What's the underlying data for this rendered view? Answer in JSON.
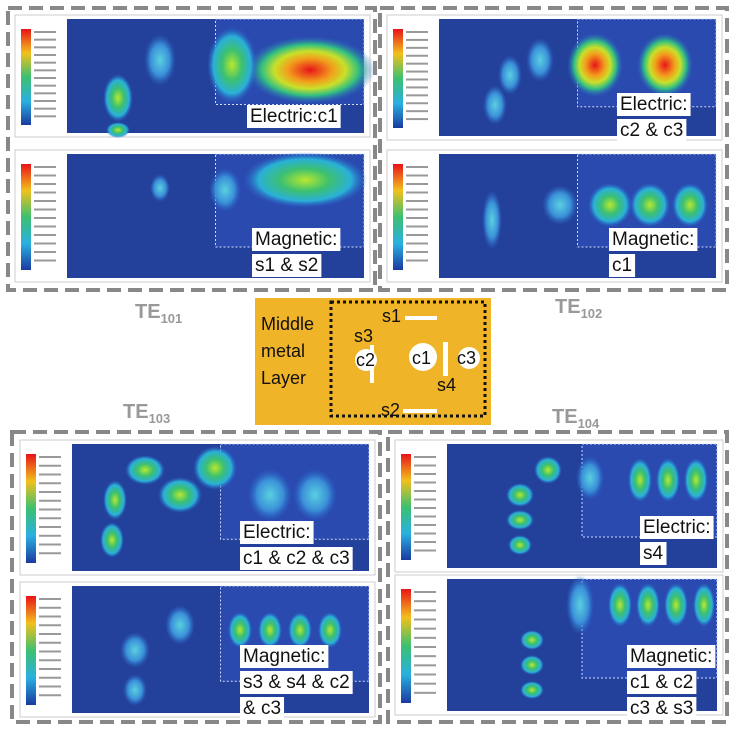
{
  "panels": [
    {
      "mode": {
        "base": "TE",
        "sub": "101"
      },
      "electric": [
        "Electric:c1"
      ],
      "magnetic": [
        "Magnetic:",
        "s1 & s2"
      ]
    },
    {
      "mode": {
        "base": "TE",
        "sub": "102"
      },
      "electric": [
        "Electric:",
        "c2 & c3"
      ],
      "magnetic": [
        "Magnetic:",
        "c1"
      ]
    },
    {
      "mode": {
        "base": "TE",
        "sub": "103"
      },
      "electric": [
        "Electric:",
        "c1 & c2 & c3"
      ],
      "magnetic": [
        "Magnetic:",
        "s3 & s4 & c2",
        "& c3"
      ]
    },
    {
      "mode": {
        "base": "TE",
        "sub": "104"
      },
      "electric": [
        "Electric:",
        "s4"
      ],
      "magnetic": [
        "Magnetic:",
        "c1 & c2",
        "c3 & s3"
      ]
    }
  ],
  "middle": {
    "title": [
      "Middle",
      "metal",
      "Layer"
    ],
    "labels": {
      "s1": "s1",
      "s3": "s3",
      "c2": "c2",
      "c1": "c1",
      "c3": "c3",
      "s4": "s4",
      "s2": "s2"
    }
  }
}
